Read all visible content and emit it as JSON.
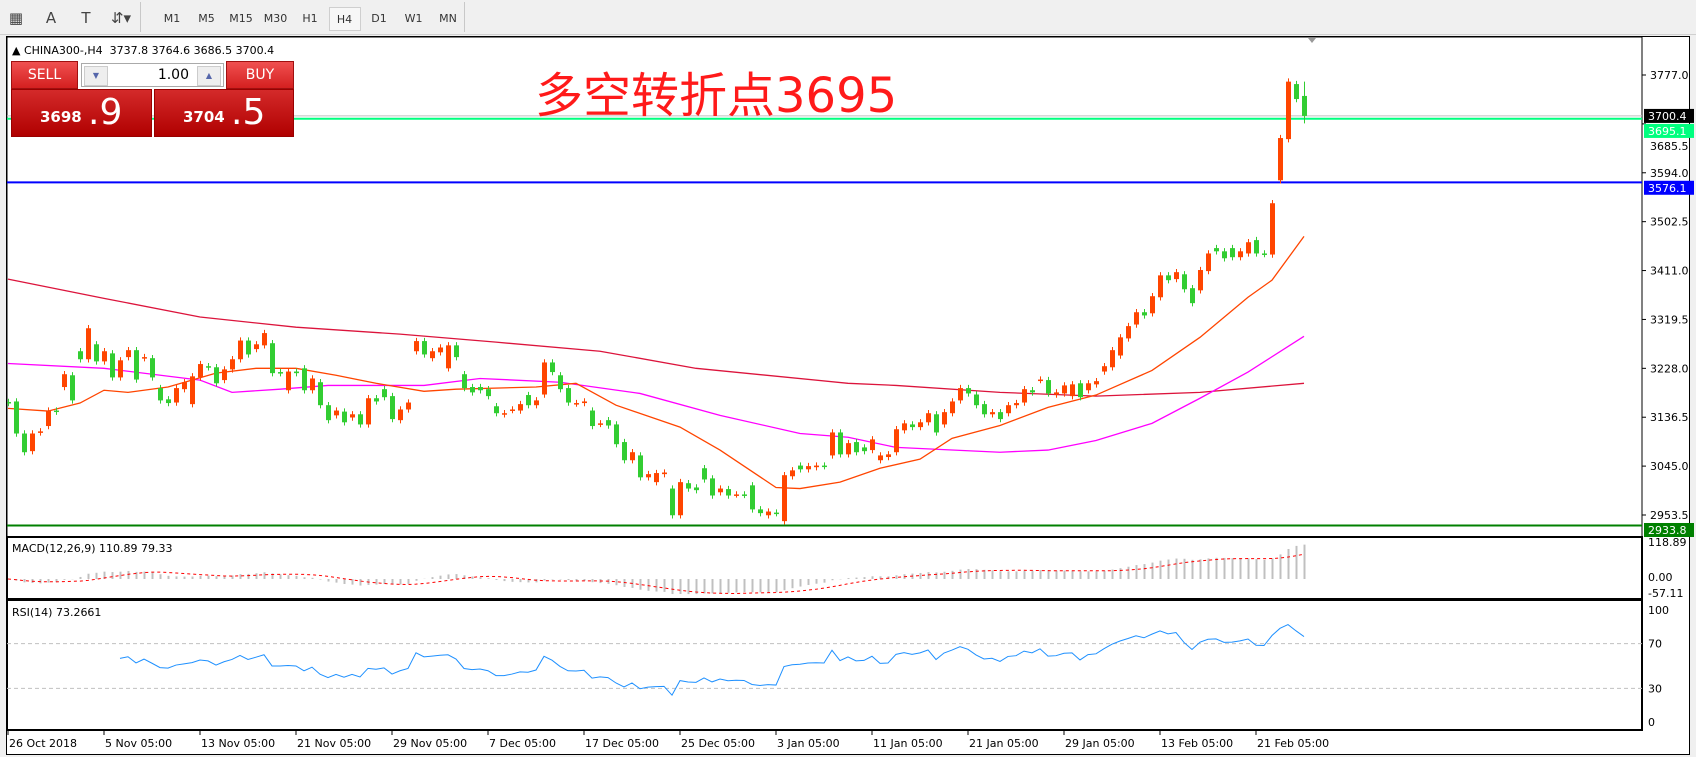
{
  "toolbar": {
    "tools": [
      {
        "name": "fibonacci-fan-icon",
        "glyph": "▦"
      },
      {
        "name": "text-icon",
        "glyph": "A"
      },
      {
        "name": "text-label-icon",
        "glyph": "T"
      },
      {
        "name": "arrows-icon",
        "glyph": "⇵▾"
      }
    ],
    "timeframes": [
      "M1",
      "M5",
      "M15",
      "M30",
      "H1",
      "H4",
      "D1",
      "W1",
      "MN"
    ],
    "selected_timeframe": "H4"
  },
  "chart": {
    "header": "CHINA300-,H4  3737.8 3764.6 3686.5 3700.4",
    "annotation": "多空转折点3695",
    "trade_panel": {
      "sell_label": "SELL",
      "buy_label": "BUY",
      "lot": "1.00",
      "sell_price_main": "3698",
      "sell_price_frac": ".9",
      "buy_price_main": "3704",
      "buy_price_frac": ".5"
    },
    "macd_label": "MACD(12,26,9) 110.89 79.33",
    "rsi_label": "RSI(14) 73.2661"
  },
  "chart_data": {
    "type": "candlestick",
    "symbol": "CHINA300-",
    "timeframe": "H4",
    "last_bar": {
      "open": 3737.8,
      "high": 3764.6,
      "low": 3686.5,
      "close": 3700.4
    },
    "colors": {
      "up": "#ff4500",
      "down": "#32cd32",
      "ma_fast": "#ff4500",
      "ma_mid": "#ff00ff",
      "ma_slow": "#dc143c",
      "rsi": "#1e90ff",
      "macd_hist": "#c0c0c0",
      "macd_signal": "#ff0000"
    },
    "price_axis": {
      "ticks": [
        3777.0,
        3685.5,
        3594.0,
        3502.5,
        3411.0,
        3319.5,
        3228.0,
        3136.5,
        3045.0,
        2953.5
      ]
    },
    "horizontal_lines": [
      {
        "price": 3700.4,
        "label": "3700.4",
        "color": "#c0c0c0",
        "label_bg": "#000000"
      },
      {
        "price": 3695.1,
        "label": "3695.1",
        "color": "#00ff7f",
        "label_bg": "#00ff7f"
      },
      {
        "price": 3576.1,
        "label": "3576.1",
        "color": "#0000ff",
        "label_bg": "#0000ff"
      },
      {
        "price": 2933.8,
        "label": "2933.8",
        "color": "#008000",
        "label_bg": "#008000"
      }
    ],
    "time_axis": [
      "26 Oct 2018",
      "5 Nov 05:00",
      "13 Nov 05:00",
      "21 Nov 05:00",
      "29 Nov 05:00",
      "7 Dec 05:00",
      "17 Dec 05:00",
      "25 Dec 05:00",
      "3 Jan 05:00",
      "11 Jan 05:00",
      "21 Jan 05:00",
      "29 Jan 05:00",
      "13 Feb 05:00",
      "21 Feb 05:00"
    ],
    "candles_open_close": [
      [
        3165,
        3163
      ],
      [
        3166,
        3106
      ],
      [
        3106,
        3071
      ],
      [
        3073,
        3106
      ],
      [
        3108,
        3110
      ],
      [
        3120,
        3149
      ],
      [
        3149,
        3147
      ],
      [
        3193,
        3217
      ],
      [
        3215,
        3168
      ],
      [
        3260,
        3245
      ],
      [
        3245,
        3303
      ],
      [
        3273,
        3241
      ],
      [
        3241,
        3260
      ],
      [
        3256,
        3211
      ],
      [
        3211,
        3243
      ],
      [
        3249,
        3262
      ],
      [
        3262,
        3207
      ],
      [
        3247,
        3249
      ],
      [
        3247,
        3211
      ],
      [
        3191,
        3168
      ],
      [
        3170,
        3163
      ],
      [
        3164,
        3191
      ],
      [
        3189,
        3202
      ],
      [
        3161,
        3213
      ],
      [
        3211,
        3236
      ],
      [
        3232,
        3230
      ],
      [
        3230,
        3200
      ],
      [
        3206,
        3226
      ],
      [
        3226,
        3245
      ],
      [
        3245,
        3280
      ],
      [
        3280,
        3254
      ],
      [
        3264,
        3273
      ],
      [
        3271,
        3294
      ],
      [
        3275,
        3219
      ],
      [
        3221,
        3219
      ],
      [
        3187,
        3222
      ],
      [
        3222,
        3219
      ],
      [
        3228,
        3187
      ],
      [
        3187,
        3209
      ],
      [
        3202,
        3159
      ],
      [
        3159,
        3131
      ],
      [
        3140,
        3149
      ],
      [
        3147,
        3127
      ],
      [
        3136,
        3142
      ],
      [
        3142,
        3123
      ],
      [
        3123,
        3172
      ],
      [
        3172,
        3166
      ],
      [
        3189,
        3174
      ],
      [
        3176,
        3133
      ],
      [
        3131,
        3151
      ],
      [
        3151,
        3164
      ],
      [
        3260,
        3279
      ],
      [
        3279,
        3254
      ],
      [
        3247,
        3260
      ],
      [
        3258,
        3267
      ],
      [
        3228,
        3271
      ],
      [
        3271,
        3249
      ],
      [
        3217,
        3191
      ],
      [
        3193,
        3183
      ],
      [
        3193,
        3187
      ],
      [
        3189,
        3176
      ],
      [
        3157,
        3144
      ],
      [
        3142,
        3144
      ],
      [
        3150,
        3151
      ],
      [
        3149,
        3161
      ],
      [
        3178,
        3159
      ],
      [
        3159,
        3168
      ],
      [
        3179,
        3239
      ],
      [
        3239,
        3221
      ],
      [
        3215,
        3189
      ],
      [
        3191,
        3164
      ],
      [
        3162,
        3163
      ],
      [
        3163,
        3166
      ],
      [
        3149,
        3120
      ],
      [
        3124,
        3125
      ],
      [
        3131,
        3121
      ],
      [
        3123,
        3086
      ],
      [
        3090,
        3056
      ],
      [
        3056,
        3071
      ],
      [
        3065,
        3024
      ],
      [
        3024,
        3030
      ],
      [
        3015,
        3032
      ],
      [
        3030,
        3033
      ],
      [
        3003,
        2953
      ],
      [
        2953,
        3015
      ],
      [
        3013,
        3003
      ],
      [
        3005,
        3000
      ],
      [
        3041,
        3020
      ],
      [
        3022,
        2990
      ],
      [
        2996,
        3003
      ],
      [
        3002,
        2990
      ],
      [
        2992,
        2992
      ],
      [
        2992,
        2991
      ],
      [
        3009,
        2964
      ],
      [
        2964,
        2957
      ],
      [
        2953,
        2960
      ],
      [
        2958,
        2957
      ],
      [
        2942,
        3028
      ],
      [
        3026,
        3037
      ],
      [
        3046,
        3039
      ],
      [
        3039,
        3045
      ],
      [
        3043,
        3046
      ],
      [
        3046,
        3045
      ],
      [
        3065,
        3108
      ],
      [
        3108,
        3067
      ],
      [
        3067,
        3088
      ],
      [
        3090,
        3071
      ],
      [
        3080,
        3073
      ],
      [
        3075,
        3095
      ],
      [
        3056,
        3065
      ],
      [
        3062,
        3067
      ],
      [
        3071,
        3114
      ],
      [
        3112,
        3125
      ],
      [
        3123,
        3118
      ],
      [
        3118,
        3127
      ],
      [
        3127,
        3144
      ],
      [
        3142,
        3108
      ],
      [
        3123,
        3146
      ],
      [
        3144,
        3166
      ],
      [
        3168,
        3191
      ],
      [
        3191,
        3181
      ],
      [
        3179,
        3159
      ],
      [
        3161,
        3142
      ],
      [
        3142,
        3146
      ],
      [
        3146,
        3133
      ],
      [
        3144,
        3159
      ],
      [
        3159,
        3163
      ],
      [
        3164,
        3189
      ],
      [
        3187,
        3183
      ],
      [
        3206,
        3207
      ],
      [
        3206,
        3181
      ],
      [
        3179,
        3183
      ],
      [
        3181,
        3196
      ],
      [
        3176,
        3198
      ],
      [
        3200,
        3174
      ],
      [
        3187,
        3200
      ],
      [
        3198,
        3204
      ],
      [
        3222,
        3232
      ],
      [
        3230,
        3262
      ],
      [
        3252,
        3286
      ],
      [
        3284,
        3307
      ],
      [
        3310,
        3333
      ],
      [
        3333,
        3327
      ],
      [
        3331,
        3363
      ],
      [
        3361,
        3402
      ],
      [
        3402,
        3393
      ],
      [
        3395,
        3408
      ],
      [
        3404,
        3376
      ],
      [
        3378,
        3350
      ],
      [
        3374,
        3412
      ],
      [
        3410,
        3443
      ],
      [
        3453,
        3447
      ],
      [
        3447,
        3434
      ],
      [
        3453,
        3436
      ],
      [
        3436,
        3447
      ],
      [
        3443,
        3464
      ],
      [
        3468,
        3443
      ],
      [
        3443,
        3442
      ],
      [
        3441,
        3537
      ],
      [
        3580,
        3659
      ],
      [
        3657,
        3764.6
      ],
      [
        3760,
        3732
      ],
      [
        3737.8,
        3700.4
      ]
    ],
    "moving_averages": [
      {
        "id": "ma_slow",
        "points_bar_value": [
          [
            0,
            3395
          ],
          [
            12,
            3359
          ],
          [
            24,
            3324
          ],
          [
            36,
            3305
          ],
          [
            49,
            3292
          ],
          [
            61,
            3277
          ],
          [
            74,
            3260
          ],
          [
            86,
            3228
          ],
          [
            105,
            3200
          ],
          [
            111,
            3196
          ],
          [
            124,
            3183
          ],
          [
            136,
            3176
          ],
          [
            149,
            3183
          ],
          [
            162,
            3200
          ]
        ]
      },
      {
        "id": "ma_mid",
        "points_bar_value": [
          [
            0,
            3237
          ],
          [
            12,
            3228
          ],
          [
            24,
            3206
          ],
          [
            28,
            3183
          ],
          [
            34,
            3189
          ],
          [
            40,
            3196
          ],
          [
            52,
            3196
          ],
          [
            59,
            3209
          ],
          [
            69,
            3202
          ],
          [
            79,
            3181
          ],
          [
            89,
            3140
          ],
          [
            99,
            3106
          ],
          [
            105,
            3099
          ],
          [
            111,
            3080
          ],
          [
            124,
            3071
          ],
          [
            130,
            3075
          ],
          [
            136,
            3093
          ],
          [
            143,
            3125
          ],
          [
            149,
            3172
          ],
          [
            155,
            3221
          ],
          [
            162,
            3288
          ]
        ]
      },
      {
        "id": "ma_fast",
        "points_bar_value": [
          [
            0,
            3153
          ],
          [
            5,
            3148
          ],
          [
            9,
            3163
          ],
          [
            12,
            3187
          ],
          [
            15,
            3183
          ],
          [
            20,
            3193
          ],
          [
            26,
            3219
          ],
          [
            31,
            3228
          ],
          [
            36,
            3228
          ],
          [
            41,
            3215
          ],
          [
            46,
            3200
          ],
          [
            52,
            3185
          ],
          [
            56,
            3189
          ],
          [
            66,
            3193
          ],
          [
            71,
            3200
          ],
          [
            76,
            3159
          ],
          [
            84,
            3118
          ],
          [
            89,
            3075
          ],
          [
            96,
            3005
          ],
          [
            99,
            3003
          ],
          [
            104,
            3015
          ],
          [
            109,
            3041
          ],
          [
            114,
            3058
          ],
          [
            118,
            3097
          ],
          [
            124,
            3121
          ],
          [
            130,
            3155
          ],
          [
            136,
            3178
          ],
          [
            143,
            3224
          ],
          [
            149,
            3286
          ],
          [
            155,
            3361
          ],
          [
            158,
            3393
          ],
          [
            162,
            3475
          ]
        ]
      }
    ],
    "macd": {
      "params": [
        12,
        26,
        9
      ],
      "main": 110.89,
      "signal": 79.33,
      "axis_ticks": [
        "118.89",
        "0.00",
        "-57.11"
      ]
    },
    "rsi": {
      "period": 14,
      "value": 73.2661,
      "levels": [
        70,
        30
      ],
      "axis_ticks": [
        "100",
        "70",
        "30",
        "0"
      ]
    }
  }
}
